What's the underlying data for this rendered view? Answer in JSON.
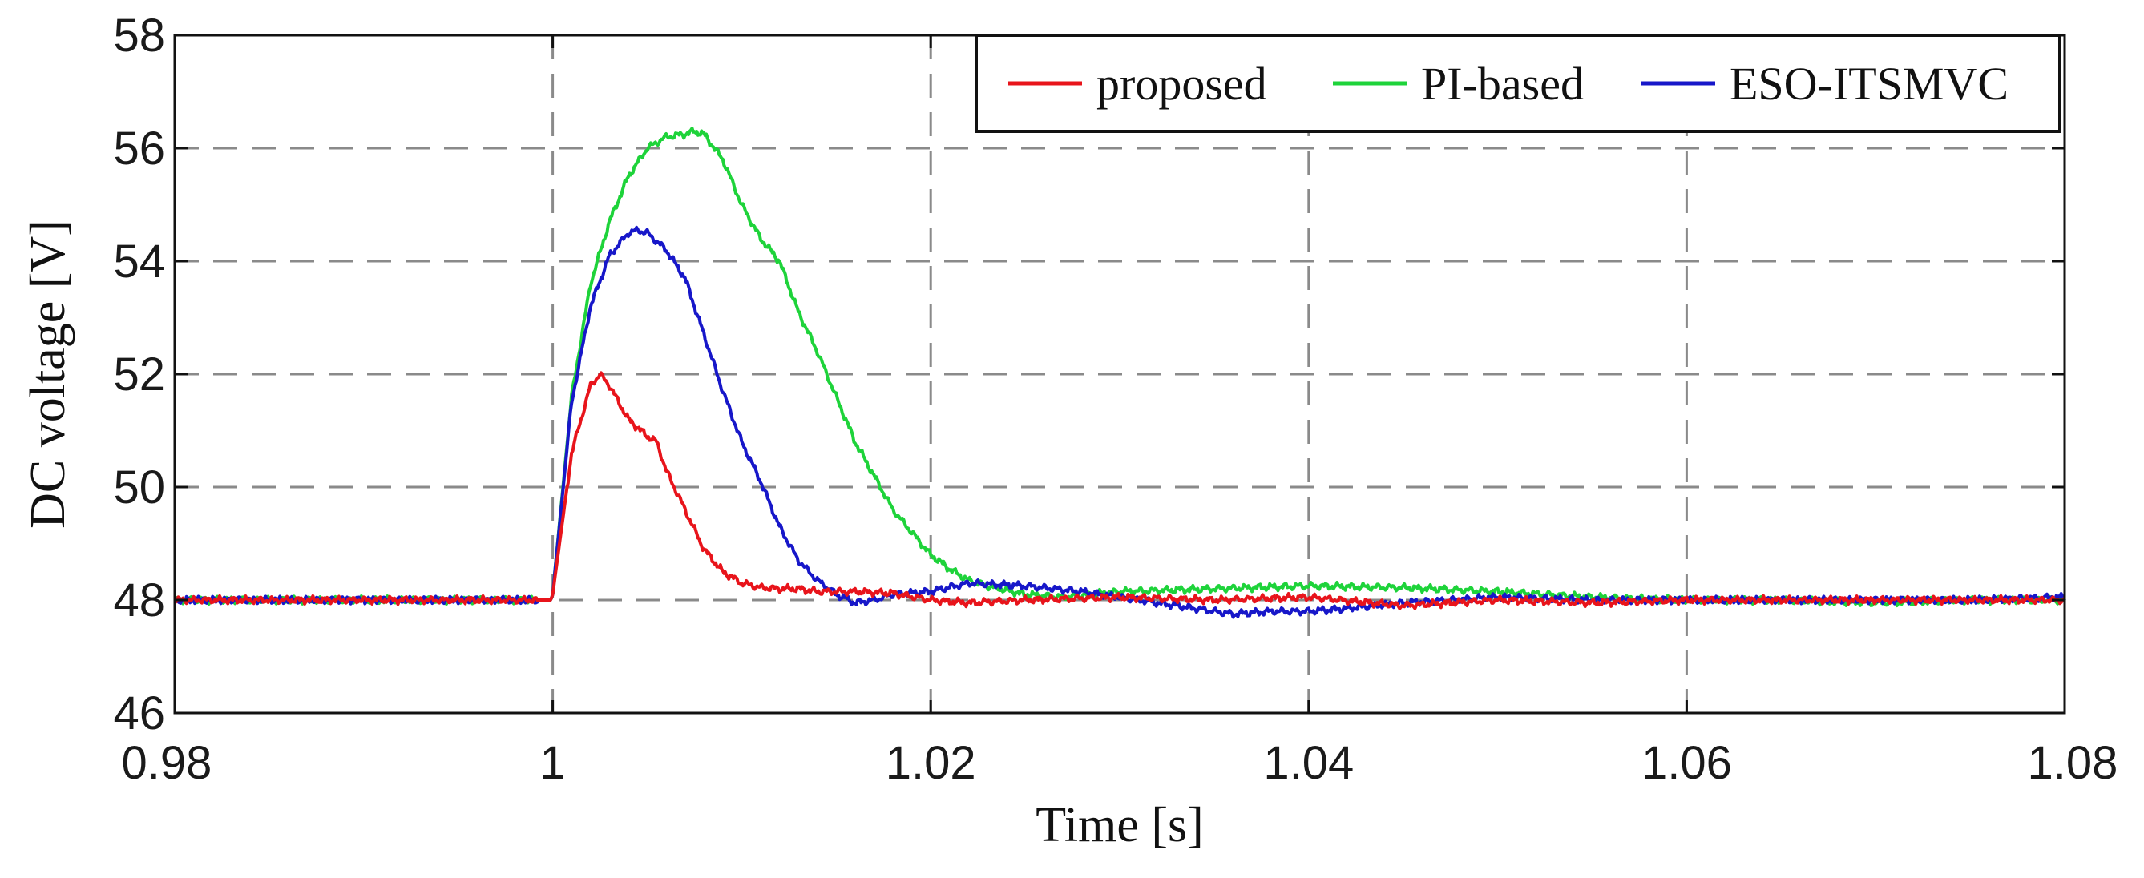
{
  "chart_data": {
    "type": "line",
    "xlabel": "Time [s]",
    "ylabel": "DC voltage [V]",
    "xlim": [
      0.98,
      1.08
    ],
    "ylim": [
      46,
      58
    ],
    "x_ticks": [
      "0.98",
      "1",
      "1.02",
      "1.04",
      "1.06",
      "1.08"
    ],
    "x_tick_values": [
      0.98,
      1.0,
      1.02,
      1.04,
      1.06,
      1.08
    ],
    "y_ticks": [
      "46",
      "48",
      "50",
      "52",
      "54",
      "56",
      "58"
    ],
    "y_tick_values": [
      46,
      48,
      50,
      52,
      54,
      56,
      58
    ],
    "grid": true,
    "legend_position": "top-right",
    "series": [
      {
        "name": "proposed",
        "color": "#e8141b",
        "x": [
          0.98,
          0.985,
          0.99,
          0.995,
          0.9999,
          1.0,
          1.001,
          1.002,
          1.0025,
          1.003,
          1.004,
          1.005,
          1.0055,
          1.006,
          1.007,
          1.008,
          1.009,
          1.01,
          1.011,
          1.012,
          1.013,
          1.014,
          1.015,
          1.016,
          1.018,
          1.02,
          1.022,
          1.025,
          1.03,
          1.035,
          1.04,
          1.045,
          1.05,
          1.055,
          1.06,
          1.065,
          1.07,
          1.075,
          1.08
        ],
        "y": [
          48.0,
          48.0,
          48.0,
          48.0,
          48.0,
          48.1,
          50.6,
          51.8,
          52.0,
          51.8,
          51.2,
          50.9,
          50.8,
          50.3,
          49.6,
          48.9,
          48.5,
          48.3,
          48.22,
          48.2,
          48.2,
          48.15,
          48.15,
          48.15,
          48.12,
          48.0,
          47.95,
          48.0,
          48.05,
          48.0,
          48.05,
          47.9,
          48.0,
          47.95,
          48.0,
          48.0,
          48.0,
          48.0,
          48.0
        ]
      },
      {
        "name": "PI-based",
        "color": "#1ed33a",
        "x": [
          0.98,
          0.985,
          0.99,
          0.995,
          0.9999,
          1.0,
          1.001,
          1.002,
          1.003,
          1.004,
          1.005,
          1.006,
          1.007,
          1.0075,
          1.008,
          1.009,
          1.01,
          1.011,
          1.012,
          1.013,
          1.014,
          1.015,
          1.016,
          1.017,
          1.018,
          1.019,
          1.02,
          1.021,
          1.022,
          1.023,
          1.025,
          1.027,
          1.03,
          1.035,
          1.04,
          1.045,
          1.05,
          1.055,
          1.06,
          1.065,
          1.07,
          1.075,
          1.08
        ],
        "y": [
          48.0,
          48.0,
          48.0,
          48.0,
          48.0,
          48.1,
          51.6,
          53.6,
          54.7,
          55.5,
          56.0,
          56.2,
          56.25,
          56.3,
          56.25,
          55.8,
          55.0,
          54.4,
          54.0,
          53.1,
          52.4,
          51.6,
          50.8,
          50.2,
          49.6,
          49.2,
          48.8,
          48.55,
          48.35,
          48.25,
          48.1,
          48.05,
          48.15,
          48.2,
          48.25,
          48.22,
          48.15,
          48.05,
          48.0,
          48.0,
          47.95,
          48.0,
          48.0
        ]
      },
      {
        "name": "ESO-ITSMVC",
        "color": "#1717c9",
        "x": [
          0.98,
          0.985,
          0.99,
          0.995,
          0.9999,
          1.0,
          1.001,
          1.002,
          1.003,
          1.004,
          1.0045,
          1.005,
          1.006,
          1.007,
          1.008,
          1.009,
          1.01,
          1.011,
          1.012,
          1.013,
          1.014,
          1.015,
          1.016,
          1.017,
          1.018,
          1.02,
          1.022,
          1.025,
          1.028,
          1.03,
          1.032,
          1.034,
          1.036,
          1.038,
          1.04,
          1.042,
          1.045,
          1.05,
          1.055,
          1.06,
          1.065,
          1.07,
          1.075,
          1.08
        ],
        "y": [
          48.0,
          48.0,
          48.0,
          48.0,
          48.0,
          48.1,
          51.5,
          53.2,
          54.1,
          54.5,
          54.55,
          54.5,
          54.2,
          53.7,
          52.7,
          51.7,
          50.8,
          50.1,
          49.3,
          48.7,
          48.35,
          48.1,
          47.95,
          48.0,
          48.1,
          48.15,
          48.3,
          48.25,
          48.15,
          48.05,
          47.95,
          47.85,
          47.75,
          47.8,
          47.8,
          47.85,
          47.95,
          48.05,
          48.0,
          48.0,
          48.0,
          48.0,
          48.0,
          48.05
        ]
      }
    ]
  }
}
